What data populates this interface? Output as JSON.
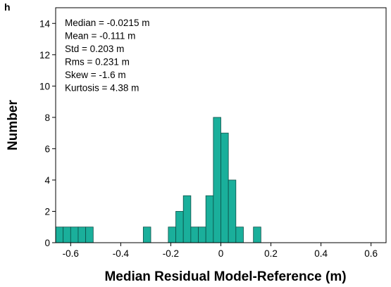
{
  "panel_letter": "h",
  "colors": {
    "bar_fill": "#1aaf9b",
    "bar_stroke": "#0c4f47",
    "axis": "#000000"
  },
  "stats": [
    "Median = -0.0215 m",
    "Mean = -0.111 m",
    "Std = 0.203 m",
    "Rms = 0.231 m",
    "Skew = -1.6 m",
    "Kurtosis = 4.38 m"
  ],
  "chart_data": {
    "type": "bar",
    "title": "",
    "xlabel": "Median Residual Model-Reference (m)",
    "ylabel": "Number",
    "xlim": [
      -0.66,
      0.66
    ],
    "ylim": [
      0,
      15
    ],
    "grid": false,
    "xticks": [
      -0.6,
      -0.4,
      -0.2,
      0,
      0.2,
      0.4,
      0.6
    ],
    "xtick_labels": [
      "-0.6",
      "-0.4",
      "-0.2",
      "0",
      "0.2",
      "0.4",
      "0.6"
    ],
    "yticks": [
      0,
      2,
      4,
      6,
      8,
      10,
      12,
      14
    ],
    "ytick_labels": [
      "0",
      "2",
      "4",
      "6",
      "8",
      "10",
      "12",
      "14"
    ],
    "bin_width": 0.03,
    "bins": [
      {
        "left": -0.66,
        "count": 1
      },
      {
        "left": -0.63,
        "count": 1
      },
      {
        "left": -0.6,
        "count": 1
      },
      {
        "left": -0.57,
        "count": 1
      },
      {
        "left": -0.54,
        "count": 1
      },
      {
        "left": -0.31,
        "count": 1
      },
      {
        "left": -0.21,
        "count": 1
      },
      {
        "left": -0.18,
        "count": 2
      },
      {
        "left": -0.15,
        "count": 3
      },
      {
        "left": -0.12,
        "count": 1
      },
      {
        "left": -0.09,
        "count": 1
      },
      {
        "left": -0.06,
        "count": 3
      },
      {
        "left": -0.03,
        "count": 8
      },
      {
        "left": 0.0,
        "count": 7
      },
      {
        "left": 0.03,
        "count": 4
      },
      {
        "left": 0.06,
        "count": 1
      },
      {
        "left": 0.13,
        "count": 1
      }
    ]
  }
}
